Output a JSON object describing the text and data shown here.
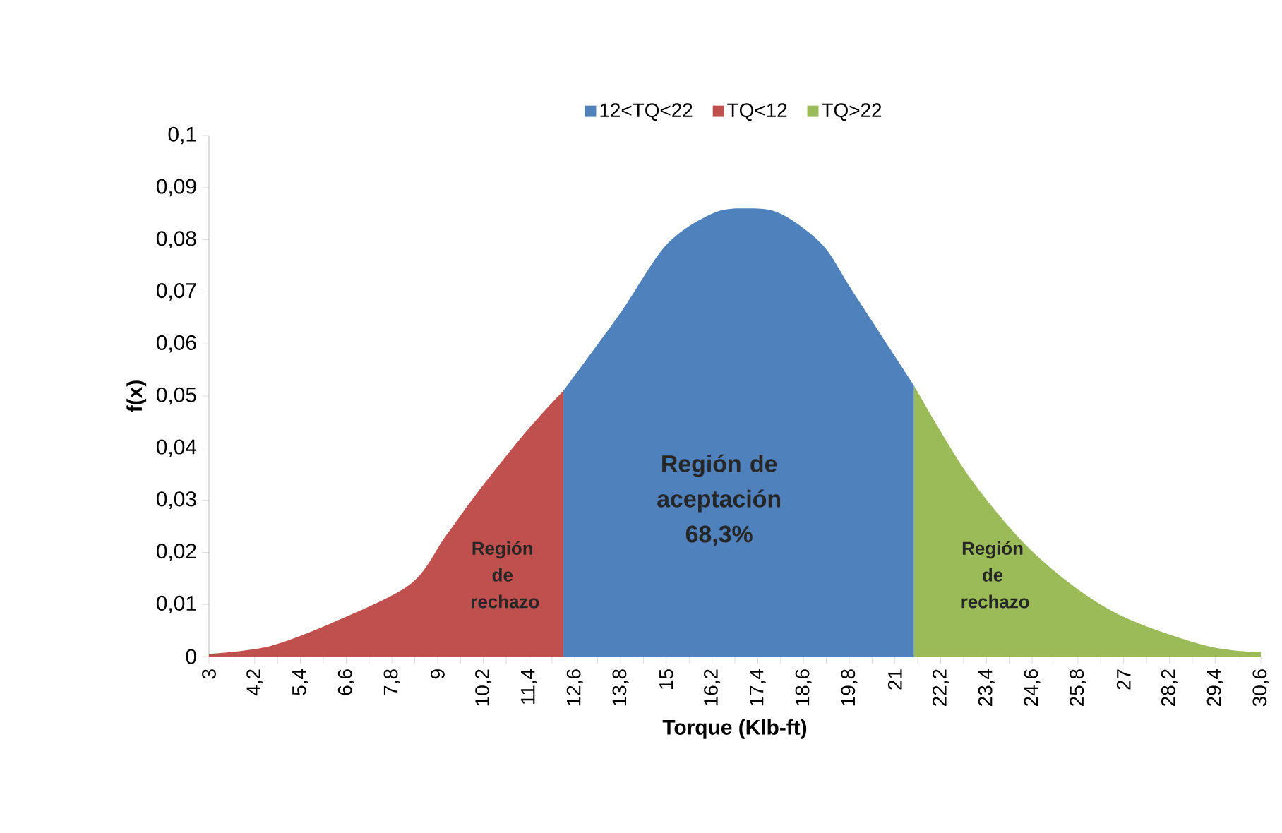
{
  "chart_data": {
    "type": "area",
    "xlabel": "Torque (Klb-ft)",
    "ylabel": "f(x)",
    "series": [
      {
        "name": "12<TQ<22",
        "color": "#4f81bd",
        "x": [
          12.3,
          13.8,
          15.0,
          16.2,
          17.1,
          18.0,
          19.1,
          19.9,
          21.5
        ],
        "values": [
          0.051,
          0.066,
          0.079,
          0.085,
          0.086,
          0.085,
          0.079,
          0.07,
          0.052
        ]
      },
      {
        "name": "TQ<12",
        "color": "#c0504d",
        "x": [
          3,
          4.6,
          6.4,
          8.3,
          9.2,
          10.1,
          11.3,
          12.3
        ],
        "values": [
          0.0005,
          0.002,
          0.007,
          0.014,
          0.023,
          0.032,
          0.043,
          0.051
        ]
      },
      {
        "name": "TQ>22",
        "color": "#9bbb59",
        "x": [
          21.5,
          23.0,
          24.7,
          26.7,
          29.1,
          30.6
        ],
        "values": [
          0.052,
          0.034,
          0.0195,
          0.0087,
          0.0022,
          0.0008
        ]
      }
    ],
    "xlim": [
      3,
      30.6
    ],
    "xticks": [
      3,
      {
        "value": 3.6,
        "label": null
      },
      {
        "value": 4.2,
        "label": "4,2"
      },
      {
        "value": 4.8,
        "label": null
      },
      {
        "value": 5.4,
        "label": "5,4"
      },
      {
        "value": 6.0,
        "label": null
      },
      {
        "value": 6.6,
        "label": "6,6"
      },
      {
        "value": 7.2,
        "label": null
      },
      {
        "value": 7.8,
        "label": "7,8"
      },
      {
        "value": 8.4,
        "label": null
      },
      9,
      {
        "value": 9.6,
        "label": null
      },
      {
        "value": 10.2,
        "label": "10,2"
      },
      {
        "value": 10.8,
        "label": null
      },
      {
        "value": 11.4,
        "label": "11,4"
      },
      {
        "value": 12.0,
        "label": null
      },
      {
        "value": 12.6,
        "label": "12,6"
      },
      {
        "value": 13.2,
        "label": null
      },
      {
        "value": 13.8,
        "label": "13,8"
      },
      {
        "value": 14.4,
        "label": null
      },
      15,
      {
        "value": 15.6,
        "label": null
      },
      {
        "value": 16.2,
        "label": "16,2"
      },
      {
        "value": 16.8,
        "label": null
      },
      {
        "value": 17.4,
        "label": "17,4"
      },
      {
        "value": 18.0,
        "label": null
      },
      {
        "value": 18.6,
        "label": "18,6"
      },
      {
        "value": 19.2,
        "label": null
      },
      {
        "value": 19.8,
        "label": "19,8"
      },
      {
        "value": 20.4,
        "label": null
      },
      21,
      {
        "value": 21.6,
        "label": null
      },
      {
        "value": 22.2,
        "label": "22,2"
      },
      {
        "value": 22.8,
        "label": null
      },
      {
        "value": 23.4,
        "label": "23,4"
      },
      {
        "value": 24.0,
        "label": null
      },
      {
        "value": 24.6,
        "label": "24,6"
      },
      {
        "value": 25.2,
        "label": null
      },
      {
        "value": 25.8,
        "label": "25,8"
      },
      {
        "value": 26.4,
        "label": null
      },
      27,
      {
        "value": 27.6,
        "label": null
      },
      {
        "value": 28.2,
        "label": "28,2"
      },
      {
        "value": 28.8,
        "label": null
      },
      {
        "value": 29.4,
        "label": "29,4"
      },
      {
        "value": 30.0,
        "label": null
      },
      {
        "value": 30.6,
        "label": "30,6"
      }
    ],
    "ylim": [
      0,
      0.1
    ],
    "yticks": [
      0,
      {
        "value": 0.01,
        "label": "0,01"
      },
      {
        "value": 0.02,
        "label": "0,02"
      },
      {
        "value": 0.03,
        "label": "0,03"
      },
      {
        "value": 0.04,
        "label": "0,04"
      },
      {
        "value": 0.05,
        "label": "0,05"
      },
      {
        "value": 0.06,
        "label": "0,06"
      },
      {
        "value": 0.07,
        "label": "0,07"
      },
      {
        "value": 0.08,
        "label": "0,08"
      },
      {
        "value": 0.09,
        "label": "0,09"
      },
      {
        "value": 0.1,
        "label": "0,1"
      }
    ],
    "legend": "top",
    "annotations": [
      "Región de rechazo",
      "Región de aceptación 68,3%",
      "Región de rechazo"
    ]
  }
}
